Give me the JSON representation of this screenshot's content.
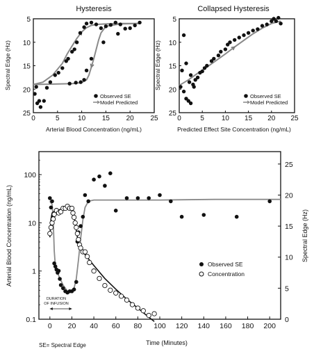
{
  "chart_data": [
    {
      "type": "scatter",
      "title": "Hysteresis",
      "xlabel": "Arterial Blood Concentration (ng/mL)",
      "ylabel": "Spectral Edge (Hz)",
      "xlim": [
        0,
        25
      ],
      "ylim": [
        25,
        5
      ],
      "y_inverted": true,
      "x_ticks": [
        "0",
        "5",
        "10",
        "15",
        "20",
        "25"
      ],
      "y_ticks": [
        "5",
        "10",
        "15",
        "20",
        "25"
      ],
      "legend": {
        "placement": "bottom-right",
        "entries": [
          "Observed SE",
          "Model Predicted"
        ]
      },
      "series": [
        {
          "name": "Observed SE",
          "style": "filled-circle",
          "x": [
            0.3,
            0.8,
            1.2,
            1.5,
            2.2,
            0.6,
            2.8,
            3.5,
            4.5,
            5.2,
            6.0,
            6.8,
            7.2,
            8.0,
            8.5,
            9.0,
            9.7,
            10.5,
            11.0,
            12.0,
            13.0,
            14.0,
            15.0,
            16.0,
            17.0,
            18.0,
            19.0,
            20.0,
            21.0,
            22.0,
            17.5,
            14.5,
            12.0,
            11.0,
            10.5,
            9.8,
            8.8,
            7.5
          ],
          "y": [
            21.0,
            23.0,
            22.5,
            23.8,
            22.5,
            19.5,
            19.7,
            18.5,
            17.0,
            16.5,
            15.5,
            14.0,
            13.5,
            12.0,
            11.5,
            10.0,
            8.0,
            6.8,
            6.0,
            5.8,
            6.2,
            7.0,
            6.6,
            6.3,
            5.8,
            6.2,
            7.1,
            7.0,
            6.4,
            5.8,
            8.2,
            10.0,
            13.5,
            16.0,
            18.0,
            18.5,
            18.6,
            18.8
          ]
        },
        {
          "name": "Model Predicted",
          "style": "gray-arrow-line",
          "x": [
            0,
            2,
            4,
            6,
            7,
            8,
            9,
            10,
            11,
            12,
            13,
            15,
            18,
            22
          ],
          "y": [
            19.0,
            18.5,
            17.0,
            14.5,
            12.5,
            10.8,
            9.2,
            7.8,
            6.9,
            6.4,
            6.2,
            6.1,
            6.0,
            6.0
          ],
          "x_return": [
            22,
            18,
            15,
            14,
            13.5,
            13,
            12.5,
            12,
            11.5,
            11,
            10,
            8,
            5,
            0
          ],
          "y_return": [
            6.0,
            6.1,
            6.6,
            8.0,
            9.5,
            11.5,
            13.5,
            15.3,
            17.0,
            18.0,
            18.6,
            18.8,
            18.9,
            19.0
          ]
        }
      ]
    },
    {
      "type": "scatter",
      "title": "Collapsed Hysteresis",
      "xlabel": "Predicted Effect Site Concentration (ng/mL)",
      "ylabel": "Spectral Edge (Hz)",
      "xlim": [
        0,
        25
      ],
      "ylim": [
        25,
        5
      ],
      "y_inverted": true,
      "x_ticks": [
        "0",
        "5",
        "10",
        "15",
        "20",
        "25"
      ],
      "y_ticks": [
        "5",
        "10",
        "15",
        "20",
        "25"
      ],
      "legend": {
        "placement": "bottom-right",
        "entries": [
          "Observed SE",
          "Model Predicted"
        ]
      },
      "series": [
        {
          "name": "Observed SE",
          "style": "filled-circle",
          "x": [
            0.3,
            0.6,
            1.0,
            1.5,
            2.0,
            2.5,
            3.0,
            3.5,
            4.0,
            4.5,
            5.0,
            5.5,
            6.0,
            7.0,
            7.5,
            8.5,
            9.0,
            10.0,
            10.5,
            11.0,
            12.0,
            13.0,
            14.0,
            15.0,
            16.0,
            17.0,
            18.0,
            19.0,
            20.0,
            21.0,
            22.0,
            1.0,
            1.5,
            2.2,
            2.5,
            3.2,
            20.5,
            21.5
          ],
          "y": [
            19.5,
            16.0,
            20.5,
            22.0,
            22.5,
            23.0,
            19.0,
            18.0,
            17.5,
            16.5,
            16.2,
            15.5,
            15.0,
            14.0,
            13.5,
            12.8,
            12.0,
            11.5,
            10.5,
            10.0,
            9.5,
            9.0,
            8.5,
            8.0,
            7.5,
            7.2,
            6.5,
            6.2,
            5.5,
            5.5,
            6.0,
            8.5,
            14.5,
            18.5,
            17.0,
            19.5,
            5.0,
            4.8
          ]
        },
        {
          "name": "Model Predicted",
          "style": "gray-arrow-line",
          "x": [
            0,
            2,
            4,
            6,
            8,
            10,
            12,
            14,
            16,
            18,
            20,
            22
          ],
          "y": [
            19.2,
            18.0,
            16.6,
            15.3,
            13.9,
            12.5,
            11.0,
            9.6,
            8.2,
            7.0,
            6.0,
            5.5
          ]
        }
      ]
    },
    {
      "type": "scatter",
      "title": "",
      "xlabel": "Time (Minutes)",
      "ylabel": "Arterial Blood Concentration (ng/mL)",
      "y2label": "Spectral Edge (Hz)",
      "xlim": [
        -10,
        210
      ],
      "ylim": [
        0.1,
        300
      ],
      "y_log": true,
      "y2lim": [
        0,
        27
      ],
      "x_ticks": [
        "0",
        "20",
        "40",
        "60",
        "80",
        "100",
        "120",
        "140",
        "160",
        "180",
        "200"
      ],
      "y_ticks": [
        "0.1",
        "1",
        "10",
        "100"
      ],
      "y2_ticks": [
        "0",
        "5",
        "10",
        "15",
        "20",
        "25"
      ],
      "annotations": [
        "DURATION\nOF INFUSION"
      ],
      "infusion_interval": [
        0,
        20
      ],
      "footnote": "SE= Spectral Edge",
      "legend": {
        "placement": "right",
        "entries": [
          "Observed SE",
          "Concentration"
        ]
      },
      "series": [
        {
          "name": "Observed SE",
          "style": "filled-circle",
          "axis": "right",
          "x": [
            0,
            1,
            2,
            3,
            4,
            5,
            6,
            7,
            8,
            9,
            10,
            12,
            14,
            16,
            18,
            20,
            22,
            24,
            25,
            26,
            28,
            30,
            32,
            35,
            40,
            45,
            50,
            55,
            60,
            70,
            80,
            90,
            100,
            110,
            120,
            140,
            170,
            200
          ],
          "y": [
            19.5,
            18.0,
            19.0,
            16.5,
            9.0,
            8.5,
            8.0,
            7.5,
            7.8,
            6.5,
            5.5,
            5.0,
            4.5,
            4.3,
            4.5,
            4.5,
            4.8,
            6.0,
            12.5,
            14.0,
            15.0,
            16.5,
            20.0,
            19.0,
            22.5,
            23.0,
            21.5,
            23.5,
            17.5,
            19.5,
            19.5,
            19.5,
            20.0,
            19.0,
            16.5,
            16.8,
            16.5,
            19.0
          ]
        },
        {
          "name": "Concentration",
          "style": "open-circle",
          "axis": "left",
          "x": [
            0,
            1,
            2,
            3,
            4,
            6,
            8,
            10,
            12,
            14,
            16,
            18,
            20,
            21,
            22,
            23,
            24,
            25,
            26,
            27,
            28,
            30,
            32,
            34,
            36,
            40,
            45,
            50,
            55,
            60,
            65,
            70,
            75,
            80,
            85,
            90,
            95
          ],
          "y": [
            6.0,
            8.0,
            10.0,
            12.0,
            15.0,
            18.0,
            16.0,
            17.0,
            20.0,
            20.0,
            22.0,
            20.0,
            20.0,
            16.0,
            13.0,
            10.0,
            8.0,
            6.0,
            4.5,
            3.5,
            3.0,
            2.5,
            2.5,
            2.0,
            1.5,
            1.0,
            0.7,
            0.5,
            0.4,
            0.35,
            0.3,
            0.25,
            0.2,
            0.17,
            0.15,
            0.12,
            0.13
          ]
        },
        {
          "name": "SE model curve",
          "style": "gray-line",
          "axis": "right",
          "x": [
            0,
            2,
            3,
            4,
            5,
            8,
            12,
            16,
            20,
            22,
            24,
            26,
            28,
            30,
            32,
            35,
            40,
            60,
            100,
            150,
            200,
            210
          ],
          "y": [
            19.0,
            18.5,
            16.0,
            11.0,
            8.5,
            7.0,
            5.5,
            4.5,
            4.5,
            5.0,
            6.5,
            9.5,
            13.0,
            16.0,
            18.0,
            19.0,
            19.2,
            19.2,
            19.2,
            19.3,
            19.3,
            19.3
          ]
        },
        {
          "name": "Concentration model curve",
          "style": "black-line",
          "axis": "left",
          "x": [
            0,
            1,
            2,
            5,
            10,
            15,
            20,
            21,
            22,
            23,
            24,
            25,
            26,
            28,
            30,
            32,
            35,
            40,
            50,
            60,
            70,
            80,
            90,
            95
          ],
          "y": [
            5.0,
            12.0,
            16.0,
            18.0,
            19.0,
            19.5,
            20.0,
            18.0,
            14.0,
            10.0,
            7.0,
            5.0,
            4.0,
            3.0,
            2.5,
            2.2,
            1.8,
            1.3,
            0.7,
            0.42,
            0.26,
            0.17,
            0.11,
            0.09
          ]
        }
      ]
    }
  ]
}
